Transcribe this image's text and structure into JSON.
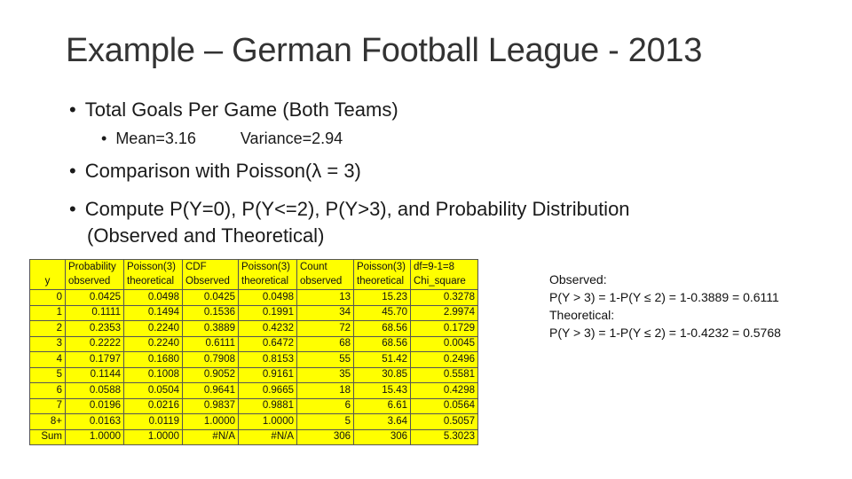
{
  "title": "Example – German Football League - 2013",
  "bullets": {
    "b1": "Total Goals Per Game (Both Teams)",
    "b1_sub_mean": "Mean=3.16",
    "b1_sub_var": "Variance=2.94",
    "b2": "Comparison with Poisson(λ = 3)",
    "b3_line1": "Compute P(Y=0), P(Y<=2), P(Y>3), and Probability Distribution",
    "b3_line2": "(Observed and Theoretical)"
  },
  "table": {
    "header1": [
      "",
      "Probability",
      "Poisson(3)",
      "CDF",
      "Poisson(3)",
      "Count",
      "Poisson(3)",
      "df=9-1=8"
    ],
    "header2": [
      "y",
      "observed",
      "theoretical",
      "Observed",
      "theoretical",
      "observed",
      "theoretical",
      "Chi_square"
    ],
    "rows": [
      [
        "0",
        "0.0425",
        "0.0498",
        "0.0425",
        "0.0498",
        "13",
        "15.23",
        "0.3278"
      ],
      [
        "1",
        "0.1111",
        "0.1494",
        "0.1536",
        "0.1991",
        "34",
        "45.70",
        "2.9974"
      ],
      [
        "2",
        "0.2353",
        "0.2240",
        "0.3889",
        "0.4232",
        "72",
        "68.56",
        "0.1729"
      ],
      [
        "3",
        "0.2222",
        "0.2240",
        "0.6111",
        "0.6472",
        "68",
        "68.56",
        "0.0045"
      ],
      [
        "4",
        "0.1797",
        "0.1680",
        "0.7908",
        "0.8153",
        "55",
        "51.42",
        "0.2496"
      ],
      [
        "5",
        "0.1144",
        "0.1008",
        "0.9052",
        "0.9161",
        "35",
        "30.85",
        "0.5581"
      ],
      [
        "6",
        "0.0588",
        "0.0504",
        "0.9641",
        "0.9665",
        "18",
        "15.43",
        "0.4298"
      ],
      [
        "7",
        "0.0196",
        "0.0216",
        "0.9837",
        "0.9881",
        "6",
        "6.61",
        "0.0564"
      ],
      [
        "8+",
        "0.0163",
        "0.0119",
        "1.0000",
        "1.0000",
        "5",
        "3.64",
        "0.5057"
      ],
      [
        "Sum",
        "1.0000",
        "1.0000",
        "#N/A",
        "#N/A",
        "306",
        "306",
        "5.3023"
      ]
    ]
  },
  "notes": {
    "line1": "Observed:",
    "line2": "P(Y > 3) = 1-P(Y ≤ 2) = 1-0.3889 = 0.6111",
    "line3": "Theoretical:",
    "line4": "P(Y > 3) = 1-P(Y ≤ 2) = 1-0.4232 = 0.5768"
  },
  "colors": {
    "table_fill": "#ffff00",
    "border": "#555555"
  }
}
